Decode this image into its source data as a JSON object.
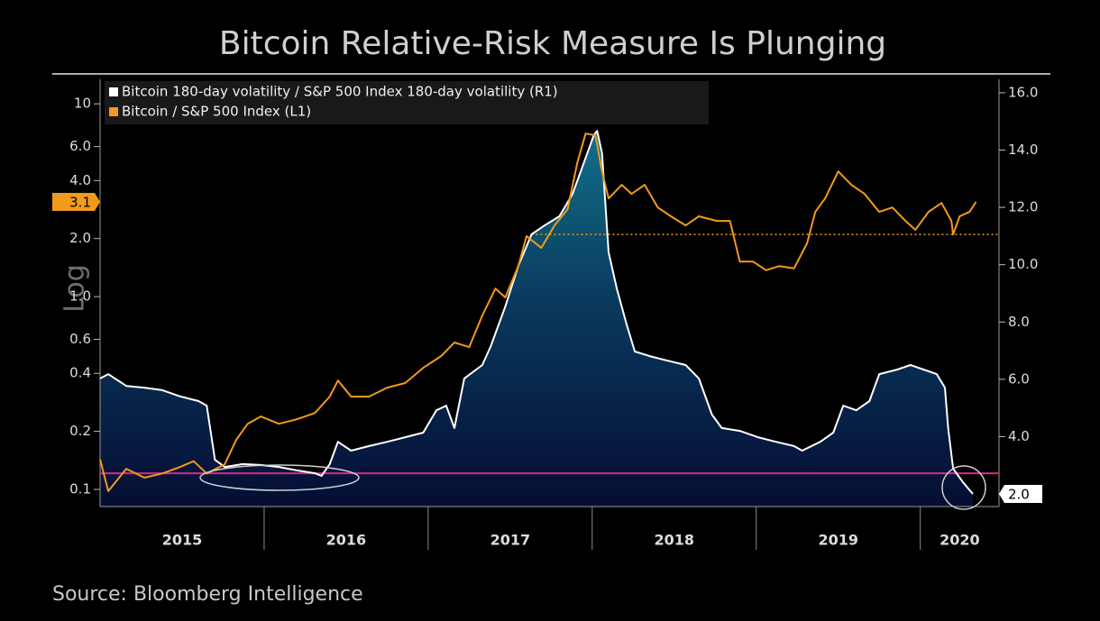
{
  "chart_data": {
    "type": "line",
    "title": "Bitcoin Relative-Risk Measure Is Plunging",
    "source": "Source: Bloomberg Intelligence",
    "y_label": "Log",
    "y_log": true,
    "legend": "upper left",
    "xlim": [
      2015,
      2020.48
    ],
    "xticks": [
      2015,
      2016,
      2017,
      2018,
      2019,
      2020
    ],
    "ylim": [
      0.0815,
      13.4
    ],
    "yticks": [
      0.1,
      0.2,
      0.4,
      0.6,
      {
        "value": 1,
        "label": "1.0"
      },
      {
        "value": 2,
        "label": "2.0"
      },
      {
        "value": 4,
        "label": "4.0"
      },
      {
        "value": 6,
        "label": "6.0"
      },
      10
    ],
    "y2lim": [
      1.56,
      16.47
    ],
    "y2ticks": [
      {
        "value": 2,
        "label": "2.0"
      },
      {
        "value": 4,
        "label": "4.0"
      },
      {
        "value": 6,
        "label": "6.0"
      },
      {
        "value": 8,
        "label": "8.0"
      },
      {
        "value": 10,
        "label": "10.0"
      },
      {
        "value": 12,
        "label": "12.0"
      },
      {
        "value": 14,
        "label": "14.0"
      },
      {
        "value": 16,
        "label": "16.0"
      }
    ],
    "hlines": [
      {
        "axis": "y2",
        "value": 2.72,
        "color": "#d62a86",
        "style": "solid"
      },
      {
        "axis": "y",
        "value": 2.1,
        "color": "#f29a1a",
        "style": "dotted",
        "x_from": 2017.63
      }
    ],
    "series": [
      {
        "name": "Bitcoin 180-day volatility / S&P 500 Index 180-day volatility (R1)",
        "color": "#ffffff",
        "axis": "y2",
        "area": true,
        "end_label": {
          "value": 2,
          "label": "2.0"
        },
        "x": [
          2015.0,
          2015.05,
          2015.16,
          2015.27,
          2015.38,
          2015.49,
          2015.6,
          2015.65,
          2015.7,
          2015.76,
          2015.87,
          2015.98,
          2016.09,
          2016.2,
          2016.31,
          2016.35,
          2016.4,
          2016.45,
          2016.53,
          2016.64,
          2016.75,
          2016.86,
          2016.97,
          2017.05,
          2017.11,
          2017.16,
          2017.22,
          2017.33,
          2017.38,
          2017.47,
          2017.55,
          2017.63,
          2017.71,
          2017.8,
          2017.88,
          2017.95,
          2018.01,
          2018.03,
          2018.06,
          2018.1,
          2018.15,
          2018.21,
          2018.26,
          2018.35,
          2018.46,
          2018.57,
          2018.65,
          2018.73,
          2018.79,
          2018.9,
          2019.01,
          2019.12,
          2019.23,
          2019.28,
          2019.39,
          2019.47,
          2019.53,
          2019.61,
          2019.69,
          2019.75,
          2019.86,
          2019.94,
          2020.02,
          2020.1,
          2020.15,
          2020.17,
          2020.2,
          2020.26,
          2020.32
        ],
        "values": [
          6.03,
          6.18,
          5.77,
          5.71,
          5.62,
          5.4,
          5.24,
          5.08,
          3.19,
          2.94,
          3.04,
          3.01,
          2.94,
          2.82,
          2.72,
          2.63,
          3.04,
          3.82,
          3.51,
          3.67,
          3.82,
          3.98,
          4.14,
          4.92,
          5.08,
          4.3,
          6.03,
          6.5,
          7.13,
          8.54,
          9.96,
          11.06,
          11.37,
          11.69,
          12.47,
          13.57,
          14.52,
          14.67,
          13.89,
          10.43,
          9.17,
          7.91,
          6.97,
          6.81,
          6.65,
          6.5,
          6.03,
          4.77,
          4.3,
          4.2,
          3.98,
          3.82,
          3.67,
          3.51,
          3.82,
          4.14,
          5.08,
          4.92,
          5.24,
          6.18,
          6.34,
          6.5,
          6.34,
          6.18,
          5.71,
          4.3,
          2.88,
          2.41,
          2.0
        ]
      },
      {
        "name": "Bitcoin / S&P 500 Index (L1)",
        "color": "#f29a1a",
        "axis": "y",
        "end_label": 3.1,
        "x": [
          2015.0,
          2015.05,
          2015.16,
          2015.27,
          2015.38,
          2015.49,
          2015.57,
          2015.65,
          2015.76,
          2015.83,
          2015.9,
          2015.98,
          2016.09,
          2016.2,
          2016.31,
          2016.4,
          2016.45,
          2016.53,
          2016.64,
          2016.75,
          2016.86,
          2016.97,
          2017.08,
          2017.16,
          2017.25,
          2017.33,
          2017.41,
          2017.47,
          2017.55,
          2017.6,
          2017.69,
          2017.77,
          2017.85,
          2017.91,
          2017.96,
          2018.02,
          2018.06,
          2018.1,
          2018.18,
          2018.24,
          2018.32,
          2018.4,
          2018.48,
          2018.57,
          2018.65,
          2018.76,
          2018.84,
          2018.9,
          2018.98,
          2019.06,
          2019.14,
          2019.23,
          2019.31,
          2019.36,
          2019.42,
          2019.5,
          2019.58,
          2019.66,
          2019.75,
          2019.83,
          2019.91,
          2019.97,
          2020.05,
          2020.13,
          2020.19,
          2020.2,
          2020.24,
          2020.3,
          2020.34
        ],
        "values": [
          0.143,
          0.098,
          0.128,
          0.115,
          0.121,
          0.131,
          0.14,
          0.121,
          0.135,
          0.181,
          0.219,
          0.239,
          0.219,
          0.231,
          0.249,
          0.303,
          0.367,
          0.303,
          0.303,
          0.337,
          0.356,
          0.427,
          0.492,
          0.578,
          0.547,
          0.798,
          1.1,
          0.99,
          1.44,
          2.06,
          1.79,
          2.34,
          2.84,
          4.97,
          7.01,
          6.86,
          4.46,
          3.23,
          3.8,
          3.41,
          3.8,
          2.9,
          2.61,
          2.34,
          2.61,
          2.47,
          2.47,
          1.52,
          1.52,
          1.37,
          1.44,
          1.4,
          1.89,
          2.75,
          3.23,
          4.46,
          3.8,
          3.41,
          2.75,
          2.9,
          2.47,
          2.22,
          2.75,
          3.06,
          2.47,
          2.1,
          2.61,
          2.75,
          3.1
        ]
      }
    ]
  }
}
